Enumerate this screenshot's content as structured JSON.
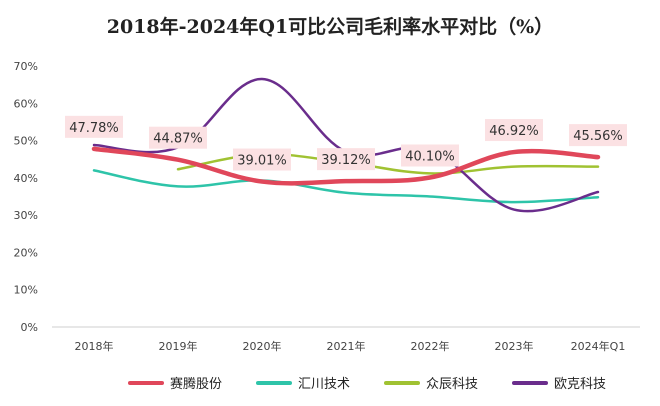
{
  "chart_data": {
    "type": "line",
    "title": "2018年-2024年Q1可比公司毛利率水平对比（%）",
    "categories": [
      "2018年",
      "2019年",
      "2020年",
      "2021年",
      "2022年",
      "2023年",
      "2024年Q1"
    ],
    "y_ticks": [
      "0%",
      "10%",
      "20%",
      "30%",
      "40%",
      "50%",
      "60%",
      "70%"
    ],
    "ylim": [
      0,
      70
    ],
    "grid": false,
    "legend_position": "bottom",
    "series": [
      {
        "name": "赛腾股份",
        "color": "#e0475a",
        "width": 4.5,
        "values": [
          47.78,
          44.87,
          39.01,
          39.12,
          40.1,
          46.92,
          45.56
        ]
      },
      {
        "name": "汇川技术",
        "color": "#2ec4a9",
        "width": 2.5,
        "values": [
          42.0,
          37.7,
          39.3,
          36.0,
          35.0,
          33.5,
          34.8
        ]
      },
      {
        "name": "众辰科技",
        "color": "#a0c232",
        "width": 2.5,
        "values": [
          null,
          42.3,
          46.3,
          44.1,
          41.2,
          43.0,
          43.0
        ]
      },
      {
        "name": "欧克科技",
        "color": "#6a2d8c",
        "width": 2.5,
        "values": [
          48.8,
          48.2,
          66.5,
          47.0,
          47.5,
          31.5,
          36.2
        ]
      }
    ],
    "data_labels": [
      {
        "series": 0,
        "index": 0,
        "text": "47.78%"
      },
      {
        "series": 0,
        "index": 1,
        "text": "44.87%"
      },
      {
        "series": 0,
        "index": 2,
        "text": "39.01%"
      },
      {
        "series": 0,
        "index": 3,
        "text": "39.12%"
      },
      {
        "series": 0,
        "index": 4,
        "text": "40.10%"
      },
      {
        "series": 0,
        "index": 5,
        "text": "46.92%"
      },
      {
        "series": 0,
        "index": 6,
        "text": "45.56%"
      }
    ],
    "label_bg_color": "#fbe1e3"
  }
}
